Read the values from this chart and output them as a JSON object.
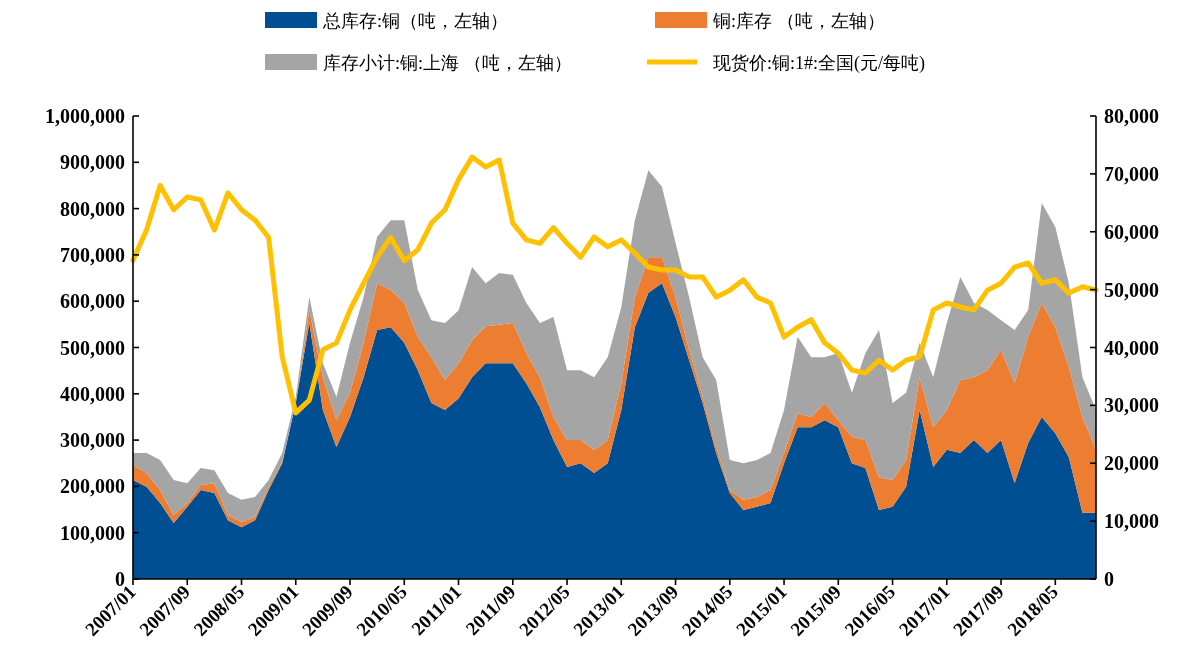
{
  "chart_data": {
    "type": "area",
    "stacked": true,
    "legend": "top",
    "x": [
      "2007-01",
      "2007-03",
      "2007-05",
      "2007-07",
      "2007-09",
      "2007-11",
      "2008-01",
      "2008-03",
      "2008-05",
      "2008-07",
      "2008-09",
      "2008-11",
      "2009-01",
      "2009-03",
      "2009-05",
      "2009-07",
      "2009-09",
      "2009-11",
      "2010-01",
      "2010-03",
      "2010-05",
      "2010-07",
      "2010-09",
      "2010-11",
      "2011-01",
      "2011-03",
      "2011-05",
      "2011-07",
      "2011-09",
      "2011-11",
      "2012-01",
      "2012-03",
      "2012-05",
      "2012-07",
      "2012-09",
      "2012-11",
      "2013-01",
      "2013-03",
      "2013-05",
      "2013-07",
      "2013-09",
      "2013-11",
      "2014-01",
      "2014-03",
      "2014-05",
      "2014-07",
      "2014-09",
      "2014-11",
      "2015-01",
      "2015-03",
      "2015-05",
      "2015-07",
      "2015-09",
      "2015-11",
      "2016-01",
      "2016-03",
      "2016-05",
      "2016-07",
      "2016-09",
      "2016-11",
      "2017-01",
      "2017-03",
      "2017-05",
      "2017-07",
      "2017-09",
      "2017-11",
      "2018-01",
      "2018-03",
      "2018-05",
      "2018-07",
      "2018-09",
      "2018-11"
    ],
    "series": [
      {
        "name": "总库存:铜（吨，左轴）",
        "type": "area",
        "color": "#004f93",
        "values": [
          214000,
          199000,
          164000,
          121000,
          156000,
          192000,
          186000,
          127000,
          112000,
          127000,
          192000,
          250000,
          380000,
          553000,
          365000,
          285000,
          350000,
          436000,
          538000,
          544000,
          510000,
          451000,
          380000,
          365000,
          390000,
          436000,
          466000,
          466000,
          466000,
          423000,
          371000,
          300000,
          242000,
          250000,
          229000,
          250000,
          365000,
          544000,
          618000,
          639000,
          566000,
          473000,
          380000,
          272000,
          186000,
          149000,
          156000,
          164000,
          250000,
          328000,
          328000,
          343000,
          328000,
          250000,
          240000,
          149000,
          156000,
          199000,
          365000,
          242000,
          279000,
          272000,
          300000,
          272000,
          300000,
          207000,
          294000,
          350000,
          315000,
          263000,
          143000,
          143000
        ]
      },
      {
        "name": "铜:库存 （吨，左轴）",
        "type": "area",
        "color": "#ed7d31",
        "values": [
          32000,
          30000,
          28000,
          17000,
          8000,
          11000,
          21000,
          11000,
          11000,
          7000,
          7000,
          3000,
          0,
          28000,
          71000,
          58000,
          52000,
          74000,
          101000,
          80000,
          86000,
          72000,
          99000,
          65000,
          75000,
          80000,
          80000,
          83000,
          87000,
          65000,
          65000,
          50000,
          58000,
          50000,
          50000,
          50000,
          58000,
          65000,
          77000,
          56000,
          43000,
          22000,
          13000,
          13000,
          6000,
          22000,
          21000,
          28000,
          22000,
          30000,
          22000,
          37000,
          15000,
          57000,
          60000,
          71000,
          58000,
          58000,
          71000,
          86000,
          86000,
          158000,
          136000,
          179000,
          195000,
          216000,
          229000,
          246000,
          229000,
          195000,
          207000,
          136000
        ]
      },
      {
        "name": "库存小计:铜:上海 （吨，左轴）",
        "type": "area",
        "color": "#a5a5a5",
        "values": [
          26000,
          43000,
          65000,
          76000,
          43000,
          37000,
          28000,
          48000,
          48000,
          43000,
          15000,
          19000,
          13000,
          28000,
          30000,
          50000,
          108000,
          99000,
          100000,
          151000,
          179000,
          101000,
          80000,
          123000,
          115000,
          158000,
          93000,
          112000,
          104000,
          108000,
          117000,
          216000,
          151000,
          151000,
          157000,
          179000,
          164000,
          166000,
          188000,
          152000,
          117000,
          114000,
          86000,
          145000,
          65000,
          79000,
          80000,
          80000,
          93000,
          165000,
          129000,
          99000,
          145000,
          95000,
          188000,
          318000,
          166000,
          145000,
          74000,
          108000,
          188000,
          222000,
          160000,
          130000,
          64000,
          115000,
          58000,
          216000,
          216000,
          181000,
          86000,
          86000
        ]
      },
      {
        "name": "现货价:铜:1#:全国(元/每吨)",
        "type": "line",
        "axis": "y2",
        "color": "#ffc000",
        "values": [
          55100,
          60300,
          68000,
          63800,
          66000,
          65500,
          60300,
          66700,
          63800,
          62000,
          59000,
          38400,
          28700,
          30900,
          39600,
          40800,
          46500,
          51100,
          55600,
          59000,
          55000,
          56900,
          61500,
          63800,
          69000,
          72900,
          71200,
          72400,
          61500,
          58600,
          58000,
          60700,
          58000,
          55600,
          59100,
          57400,
          58600,
          56300,
          53900,
          53400,
          53400,
          52200,
          52200,
          48700,
          49900,
          51700,
          48700,
          47700,
          41800,
          43500,
          44800,
          40800,
          39000,
          36100,
          35600,
          37800,
          36100,
          37800,
          38400,
          46500,
          47700,
          47000,
          46500,
          49900,
          51100,
          53900,
          54600,
          51100,
          51700,
          49400,
          50500,
          49900
        ]
      }
    ],
    "xlim": [
      "2007-01",
      "2018-11"
    ],
    "xticks": [
      {
        "value": "2007-01",
        "label": "2007/01"
      },
      {
        "value": "2007-09",
        "label": "2007/09"
      },
      {
        "value": "2008-05",
        "label": "2008/05"
      },
      {
        "value": "2009-01",
        "label": "2009/01"
      },
      {
        "value": "2009-09",
        "label": "2009/09"
      },
      {
        "value": "2010-05",
        "label": "2010/05"
      },
      {
        "value": "2011-01",
        "label": "2011/01"
      },
      {
        "value": "2011-09",
        "label": "2011/09"
      },
      {
        "value": "2012-05",
        "label": "2012/05"
      },
      {
        "value": "2013-01",
        "label": "2013/01"
      },
      {
        "value": "2013-09",
        "label": "2013/09"
      },
      {
        "value": "2014-05",
        "label": "2014/05"
      },
      {
        "value": "2015-01",
        "label": "2015/01"
      },
      {
        "value": "2015-09",
        "label": "2015/09"
      },
      {
        "value": "2016-05",
        "label": "2016/05"
      },
      {
        "value": "2017-01",
        "label": "2017/01"
      },
      {
        "value": "2017-09",
        "label": "2017/09"
      },
      {
        "value": "2018-05",
        "label": "2018/05"
      }
    ],
    "ylim": [
      0,
      1000000
    ],
    "yticks": [
      0,
      {
        "value": 100000,
        "label": "100,000"
      },
      {
        "value": 200000,
        "label": "200,000"
      },
      {
        "value": 300000,
        "label": "300,000"
      },
      {
        "value": 400000,
        "label": "400,000"
      },
      {
        "value": 500000,
        "label": "500,000"
      },
      {
        "value": 600000,
        "label": "600,000"
      },
      {
        "value": 700000,
        "label": "700,000"
      },
      {
        "value": 800000,
        "label": "800,000"
      },
      {
        "value": 900000,
        "label": "900,000"
      },
      {
        "value": 1000000,
        "label": "1,000,000"
      }
    ],
    "y2lim": [
      0,
      80000
    ],
    "y2ticks": [
      0,
      {
        "value": 10000,
        "label": "10,000"
      },
      {
        "value": 20000,
        "label": "20,000"
      },
      {
        "value": 30000,
        "label": "30,000"
      },
      {
        "value": 40000,
        "label": "40,000"
      },
      {
        "value": 50000,
        "label": "50,000"
      },
      {
        "value": 60000,
        "label": "60,000"
      },
      {
        "value": 70000,
        "label": "70,000"
      },
      {
        "value": 80000,
        "label": "80,000"
      }
    ],
    "grid": false,
    "line_style": "solid",
    "marker": "none"
  }
}
